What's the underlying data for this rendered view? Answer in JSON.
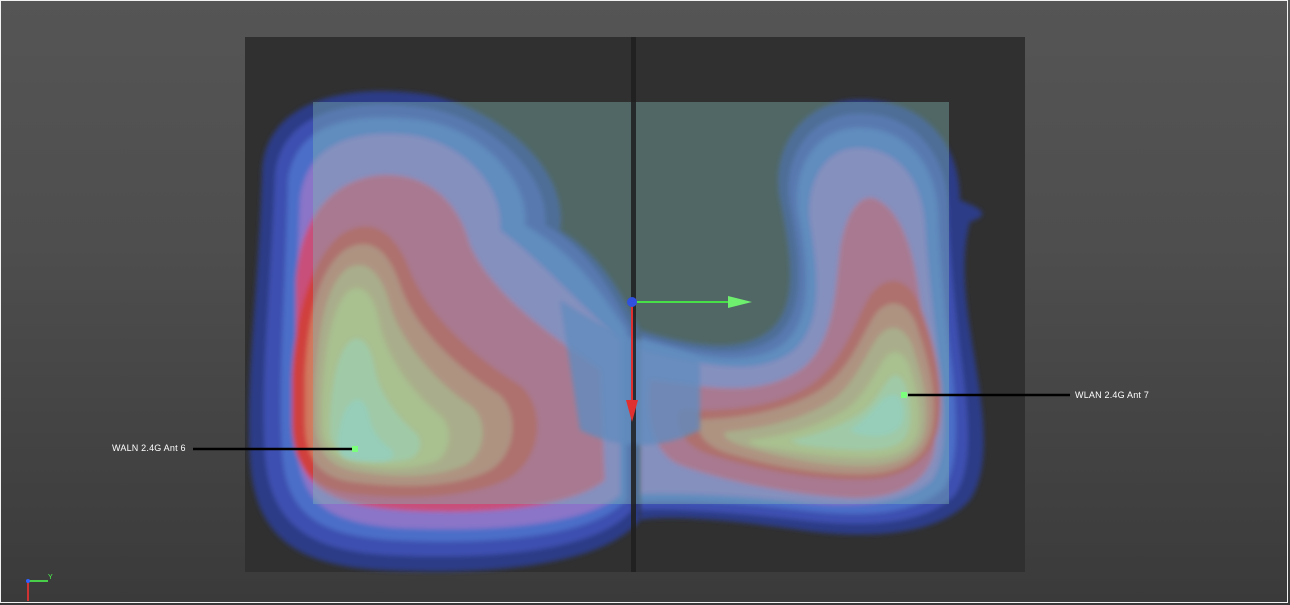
{
  "viewport": {
    "background_top": "#555555",
    "background_bottom": "#3a3a3a",
    "board_color": "#2f2f2f",
    "overlay_color": "#7fb6b0"
  },
  "antennas": [
    {
      "name": "WALN 2.4G Ant 6",
      "side": "left"
    },
    {
      "name": "WLAN 2.4G Ant 7",
      "side": "right"
    }
  ],
  "heatmap": {
    "colors": [
      "#2a3d8a",
      "#3d4fb0",
      "#4c6ec8",
      "#5a8ad0",
      "#8a74c8",
      "#b070b8",
      "#c8507a",
      "#d0403e",
      "#d0705c",
      "#d09068",
      "#c8a870",
      "#c8c878",
      "#b8d8a0",
      "#a8e0c0"
    ]
  },
  "gizmo": {
    "axis_x_color": "#48e048",
    "axis_y_color": "#e03030",
    "origin_color": "#3050e0"
  },
  "triad": {
    "y_label": "Y",
    "y_color": "#4cff4c",
    "x_color": "#ff3030",
    "z_color": "#3060ff"
  }
}
